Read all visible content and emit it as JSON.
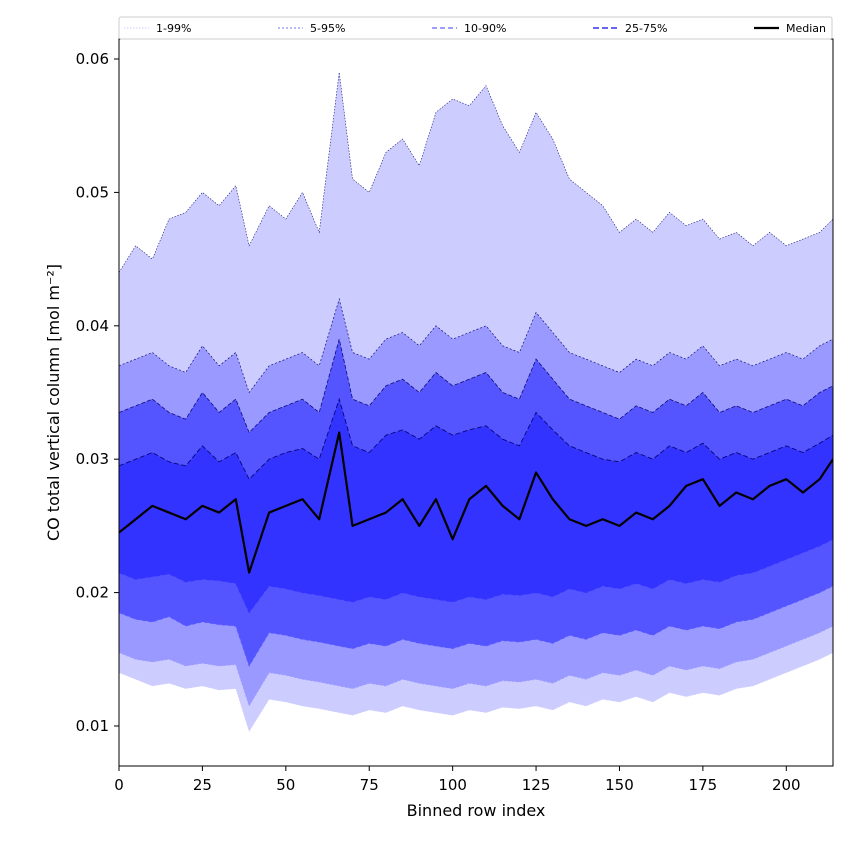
{
  "chart_data": {
    "type": "area",
    "xlabel": "Binned row index",
    "ylabel": "CO total vertical column [mol m⁻²]",
    "xlim": [
      0,
      214
    ],
    "ylim": [
      0.007,
      0.0615
    ],
    "x_ticks": [
      0,
      25,
      50,
      75,
      100,
      125,
      150,
      175,
      200
    ],
    "y_ticks": [
      0.01,
      0.02,
      0.03,
      0.04,
      0.05,
      0.06
    ],
    "y_tick_labels": [
      "0.01",
      "0.02",
      "0.03",
      "0.04",
      "0.05",
      "0.06"
    ],
    "grid": false,
    "legend_position": "top, outside plot, single row",
    "x": [
      0,
      5,
      10,
      15,
      20,
      25,
      30,
      35,
      39,
      45,
      50,
      55,
      60,
      66,
      70,
      75,
      80,
      85,
      90,
      95,
      100,
      105,
      110,
      115,
      120,
      125,
      130,
      135,
      140,
      145,
      150,
      155,
      160,
      165,
      170,
      175,
      180,
      185,
      190,
      195,
      200,
      205,
      210,
      214
    ],
    "bands": [
      {
        "name": "1-99%",
        "color": "#ccccff",
        "lower": [
          0.014,
          0.0135,
          0.013,
          0.0132,
          0.0128,
          0.013,
          0.0127,
          0.0128,
          0.0096,
          0.012,
          0.0118,
          0.0115,
          0.0113,
          0.011,
          0.0108,
          0.0112,
          0.011,
          0.0115,
          0.0112,
          0.011,
          0.0108,
          0.0112,
          0.011,
          0.0114,
          0.0113,
          0.0115,
          0.0112,
          0.0118,
          0.0115,
          0.012,
          0.0118,
          0.0122,
          0.0118,
          0.0125,
          0.0122,
          0.0125,
          0.0123,
          0.0128,
          0.013,
          0.0135,
          0.014,
          0.0145,
          0.015,
          0.0155
        ],
        "upper": [
          0.044,
          0.046,
          0.045,
          0.048,
          0.0485,
          0.05,
          0.049,
          0.0505,
          0.046,
          0.049,
          0.048,
          0.05,
          0.047,
          0.059,
          0.051,
          0.05,
          0.053,
          0.054,
          0.052,
          0.056,
          0.057,
          0.0565,
          0.058,
          0.055,
          0.053,
          0.056,
          0.054,
          0.051,
          0.05,
          0.049,
          0.047,
          0.048,
          0.047,
          0.0485,
          0.0475,
          0.048,
          0.0465,
          0.047,
          0.046,
          0.047,
          0.046,
          0.0465,
          0.047,
          0.048
        ]
      },
      {
        "name": "5-95%",
        "color": "#9999ff",
        "lower": [
          0.0155,
          0.015,
          0.0148,
          0.015,
          0.0145,
          0.0147,
          0.0145,
          0.0146,
          0.0115,
          0.014,
          0.0138,
          0.0135,
          0.0133,
          0.013,
          0.0128,
          0.0132,
          0.013,
          0.0135,
          0.0132,
          0.013,
          0.0128,
          0.0132,
          0.013,
          0.0134,
          0.0133,
          0.0135,
          0.0132,
          0.0138,
          0.0135,
          0.014,
          0.0138,
          0.0142,
          0.0138,
          0.0145,
          0.0142,
          0.0145,
          0.0143,
          0.0148,
          0.015,
          0.0155,
          0.016,
          0.0165,
          0.017,
          0.0175
        ],
        "upper": [
          0.037,
          0.0375,
          0.038,
          0.037,
          0.0365,
          0.0385,
          0.037,
          0.038,
          0.035,
          0.037,
          0.0375,
          0.038,
          0.037,
          0.042,
          0.038,
          0.0375,
          0.039,
          0.0395,
          0.0385,
          0.04,
          0.039,
          0.0395,
          0.04,
          0.0385,
          0.038,
          0.041,
          0.0395,
          0.038,
          0.0375,
          0.037,
          0.0365,
          0.0375,
          0.037,
          0.038,
          0.0375,
          0.0385,
          0.037,
          0.0375,
          0.037,
          0.0375,
          0.038,
          0.0375,
          0.0385,
          0.039
        ]
      },
      {
        "name": "10-90%",
        "color": "#5555ff",
        "lower": [
          0.0185,
          0.018,
          0.0178,
          0.0182,
          0.0175,
          0.0178,
          0.0176,
          0.0175,
          0.0145,
          0.017,
          0.0168,
          0.0165,
          0.0163,
          0.016,
          0.0158,
          0.0162,
          0.016,
          0.0165,
          0.0162,
          0.016,
          0.0158,
          0.0162,
          0.016,
          0.0164,
          0.0163,
          0.0165,
          0.0162,
          0.0168,
          0.0165,
          0.017,
          0.0168,
          0.0172,
          0.0168,
          0.0175,
          0.0172,
          0.0175,
          0.0173,
          0.0178,
          0.018,
          0.0185,
          0.019,
          0.0195,
          0.02,
          0.0205
        ],
        "upper": [
          0.0335,
          0.034,
          0.0345,
          0.0335,
          0.033,
          0.035,
          0.0335,
          0.0345,
          0.032,
          0.0335,
          0.034,
          0.0345,
          0.0335,
          0.039,
          0.0345,
          0.034,
          0.0355,
          0.036,
          0.035,
          0.0365,
          0.0355,
          0.036,
          0.0365,
          0.035,
          0.0345,
          0.0375,
          0.036,
          0.0345,
          0.034,
          0.0335,
          0.033,
          0.034,
          0.0335,
          0.0345,
          0.034,
          0.035,
          0.0335,
          0.034,
          0.0335,
          0.034,
          0.0345,
          0.034,
          0.035,
          0.0355
        ]
      },
      {
        "name": "25-75%",
        "color": "#3333ff",
        "lower": [
          0.0215,
          0.021,
          0.0212,
          0.0214,
          0.0208,
          0.021,
          0.0209,
          0.0207,
          0.0185,
          0.0205,
          0.0203,
          0.02,
          0.0198,
          0.0195,
          0.0193,
          0.0197,
          0.0195,
          0.02,
          0.0197,
          0.0195,
          0.0193,
          0.0197,
          0.0195,
          0.0199,
          0.0198,
          0.02,
          0.0197,
          0.0203,
          0.02,
          0.0205,
          0.0203,
          0.0207,
          0.0203,
          0.021,
          0.0207,
          0.021,
          0.0208,
          0.0213,
          0.0215,
          0.022,
          0.0225,
          0.023,
          0.0235,
          0.024
        ],
        "upper": [
          0.0295,
          0.03,
          0.0305,
          0.0298,
          0.0295,
          0.031,
          0.0298,
          0.0305,
          0.0285,
          0.03,
          0.0305,
          0.0308,
          0.03,
          0.0345,
          0.031,
          0.0305,
          0.0318,
          0.0322,
          0.0315,
          0.0325,
          0.0318,
          0.0322,
          0.0325,
          0.0315,
          0.031,
          0.0335,
          0.0322,
          0.031,
          0.0305,
          0.03,
          0.0298,
          0.0305,
          0.03,
          0.031,
          0.0305,
          0.0312,
          0.03,
          0.0305,
          0.03,
          0.0305,
          0.031,
          0.0305,
          0.0312,
          0.0318
        ]
      }
    ],
    "median": {
      "name": "Median",
      "color": "#000000",
      "values": [
        0.0245,
        0.0255,
        0.0265,
        0.026,
        0.0255,
        0.0265,
        0.026,
        0.027,
        0.0215,
        0.026,
        0.0265,
        0.027,
        0.0255,
        0.032,
        0.025,
        0.0255,
        0.026,
        0.027,
        0.025,
        0.027,
        0.024,
        0.027,
        0.028,
        0.0265,
        0.0255,
        0.029,
        0.027,
        0.0255,
        0.025,
        0.0255,
        0.025,
        0.026,
        0.0255,
        0.0265,
        0.028,
        0.0285,
        0.0265,
        0.0275,
        0.027,
        0.028,
        0.0285,
        0.0275,
        0.0285,
        0.03
      ]
    }
  }
}
